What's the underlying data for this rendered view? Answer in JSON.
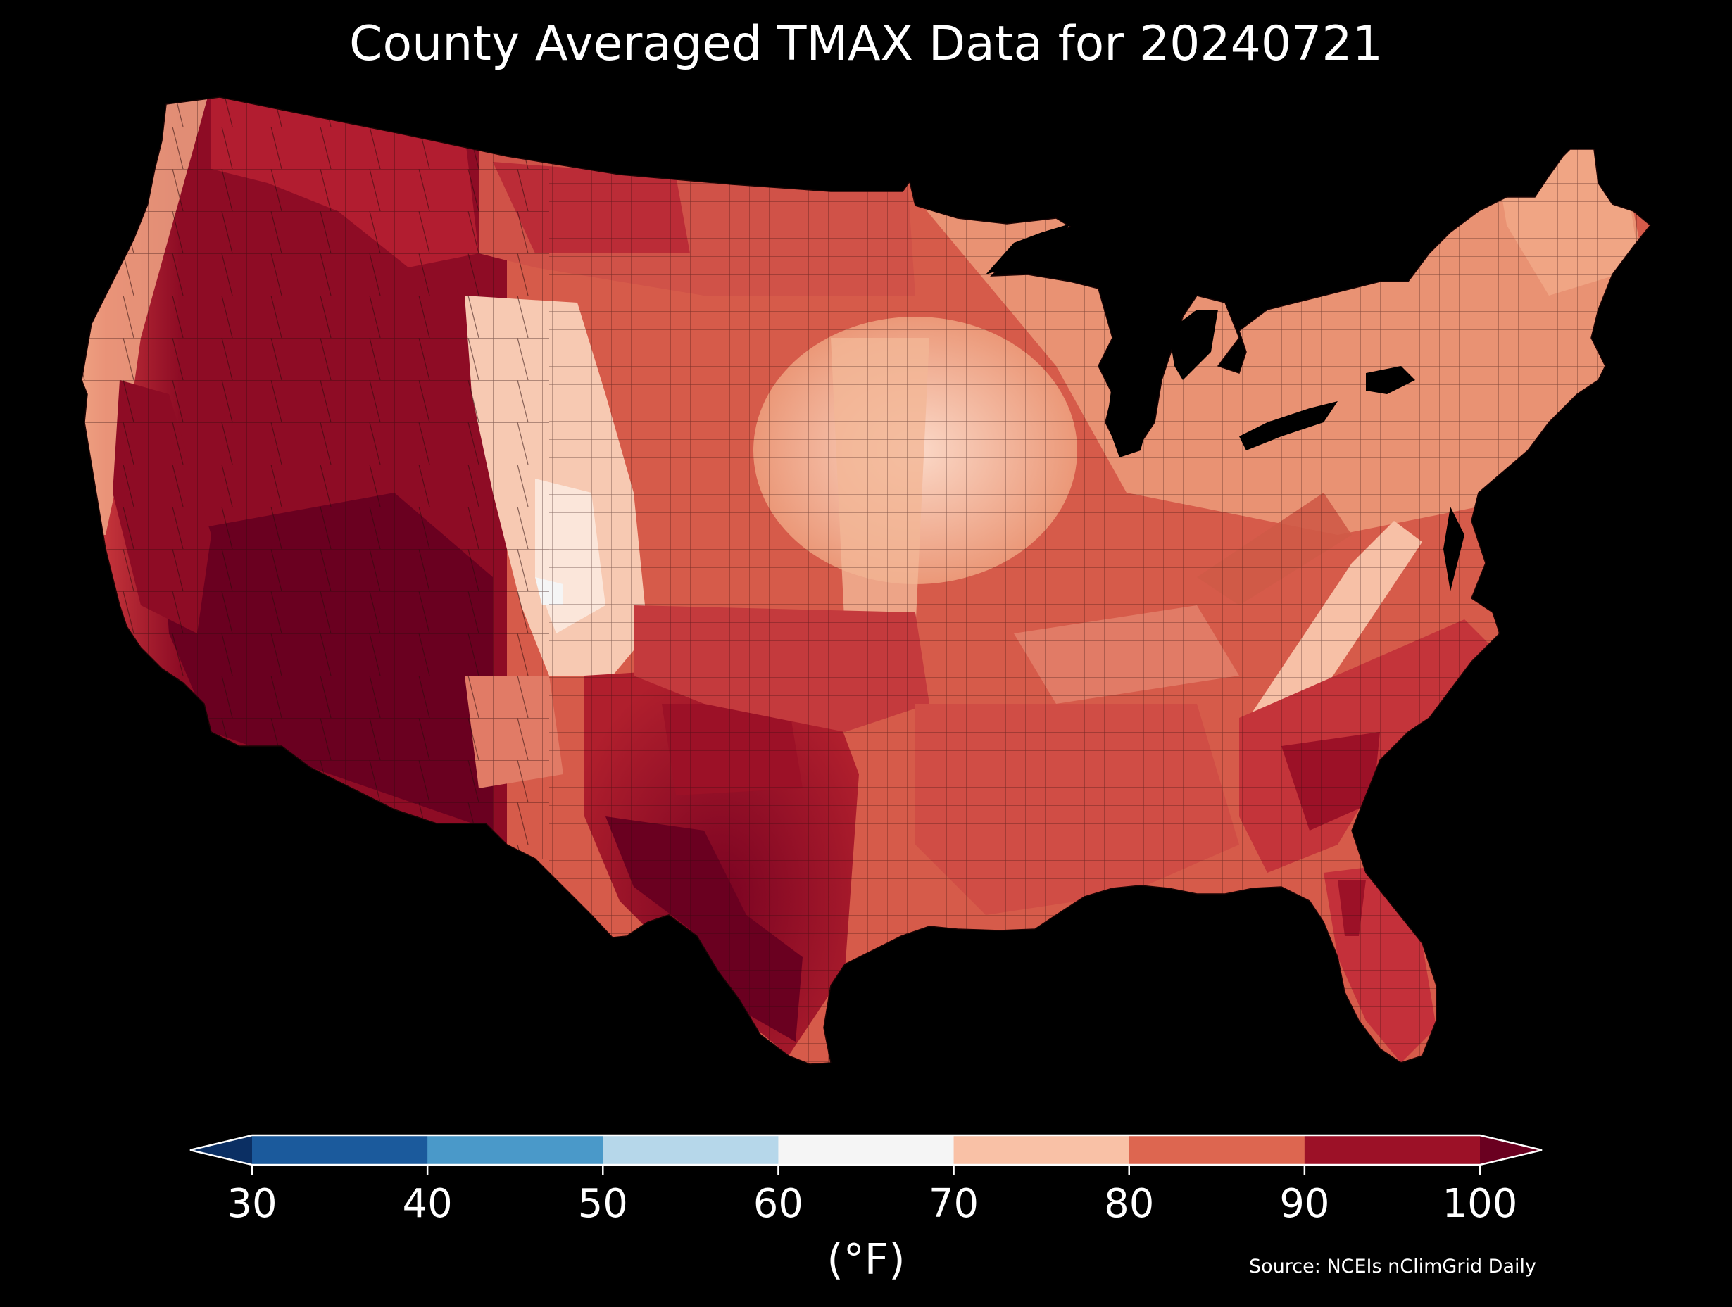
{
  "title": "County Averaged TMAX Data for 20240721",
  "colorbar": {
    "unit_label": "(°F)",
    "extend": "both",
    "ticks": [
      "30",
      "40",
      "50",
      "60",
      "70",
      "80",
      "90",
      "100"
    ],
    "bins": [
      {
        "from": 30,
        "to": 40,
        "color": "#1b5a9c"
      },
      {
        "from": 40,
        "to": 50,
        "color": "#4a99c9"
      },
      {
        "from": 50,
        "to": 60,
        "color": "#b6d7ea"
      },
      {
        "from": 60,
        "to": 70,
        "color": "#f5f5f5"
      },
      {
        "from": 70,
        "to": 80,
        "color": "#f9c1a6"
      },
      {
        "from": 80,
        "to": 90,
        "color": "#dd6650"
      },
      {
        "from": 90,
        "to": 100,
        "color": "#9c1127"
      }
    ],
    "under_color": "#0b2f63",
    "over_color": "#6a0020"
  },
  "source": "Source: NCEIs nClimGrid Daily",
  "map": {
    "region": "Contiguous United States, county level",
    "background": "#000000",
    "county_outline_color": "#1a1a1a",
    "regions": [
      {
        "name": "Pacific Northwest coast",
        "color": "#f0a584"
      },
      {
        "name": "Inland West / Great Basin",
        "color": "#8e0c25"
      },
      {
        "name": "Desert Southwest",
        "color": "#6a0020"
      },
      {
        "name": "Rocky Mountains",
        "color": "#f7c9b2"
      },
      {
        "name": "Northern Plains",
        "color": "#b21d30"
      },
      {
        "name": "Central Plains / Iowa",
        "color": "#f3b796"
      },
      {
        "name": "Texas / Southern Plains",
        "color": "#a81426"
      },
      {
        "name": "Great Lakes / Northeast",
        "color": "#eb9878"
      },
      {
        "name": "Appalachians",
        "color": "#f7c0a6"
      },
      {
        "name": "Southeast",
        "color": "#c4343a"
      },
      {
        "name": "Florida",
        "color": "#c4303a"
      },
      {
        "name": "Gulf Coast",
        "color": "#d04d45"
      }
    ]
  }
}
